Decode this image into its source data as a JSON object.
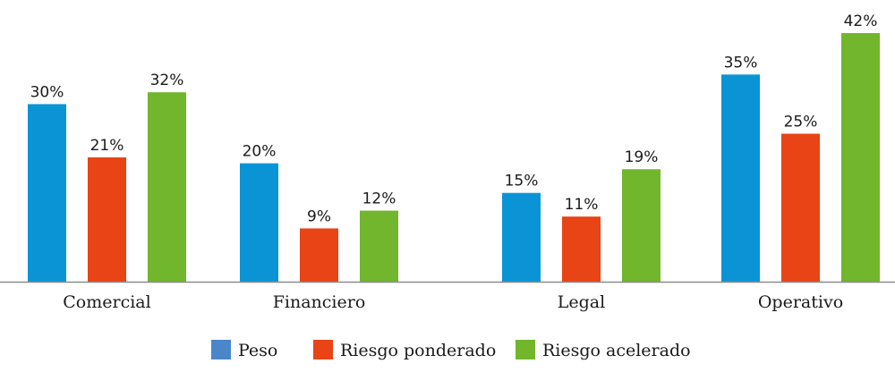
{
  "chart_data": {
    "type": "bar",
    "categories": [
      "Comercial",
      "Financiero",
      "Legal",
      "Operativo"
    ],
    "series": [
      {
        "name": "Peso",
        "values": [
          30,
          20,
          15,
          35
        ],
        "labels": [
          "30%",
          "20%",
          "15%",
          "35%"
        ],
        "color": "#0a94d6"
      },
      {
        "name": "Riesgo ponderado",
        "values": [
          21,
          9,
          11,
          25
        ],
        "labels": [
          "21%",
          "9%",
          "11%",
          "25%"
        ],
        "color": "#e84416"
      },
      {
        "name": "Riesgo acelerado",
        "values": [
          32,
          12,
          19,
          42
        ],
        "labels": [
          "32%",
          "12%",
          "19%",
          "42%"
        ],
        "color": "#71b62c"
      }
    ],
    "legend_colors": [
      "#4a86c8",
      "#e84416",
      "#71b62c"
    ],
    "ylim": [
      0,
      42
    ],
    "grid": false,
    "legend_position": "bottom-center",
    "axis_color": "#8c8c8c"
  }
}
